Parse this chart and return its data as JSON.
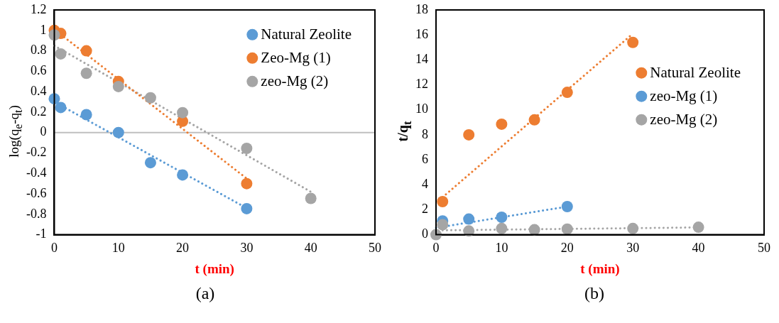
{
  "chart_data": [
    {
      "type": "scatter",
      "xlabel": "t (min)",
      "ylabel": "log(q$_{e}$-q$_{t}$)",
      "xlim": [
        0,
        50
      ],
      "xticks": [
        0,
        10,
        20,
        30,
        40,
        50
      ],
      "ylim": [
        -1,
        1.2
      ],
      "yticks": [
        -1,
        -0.8,
        -0.6,
        -0.4,
        -0.2,
        0,
        0.2,
        0.4,
        0.6,
        0.8,
        1,
        1.2
      ],
      "marker": "circle",
      "legend": "top right",
      "annotations": [
        "(a)"
      ],
      "ref_lines": [
        {
          "axis": "y",
          "value": 0,
          "color": "#bfbfbf"
        }
      ],
      "series": [
        {
          "name": "Natural Zeolite",
          "color": "#5b9bd5",
          "x": [
            0,
            1,
            5,
            10,
            15,
            20,
            30
          ],
          "values": [
            0.33,
            0.245,
            0.175,
            0.0,
            -0.295,
            -0.415,
            -0.745
          ]
        },
        {
          "name": "Zeo-Mg (1)",
          "color": "#ed7d31",
          "x": [
            0,
            1,
            5,
            10,
            20,
            30
          ],
          "values": [
            1.0,
            0.97,
            0.8,
            0.5,
            0.11,
            -0.5
          ]
        },
        {
          "name": "zeo-Mg (2)",
          "color": "#a5a5a5",
          "x": [
            0,
            1,
            5,
            10,
            15,
            20,
            30,
            40
          ],
          "values": [
            0.955,
            0.77,
            0.58,
            0.45,
            0.34,
            0.195,
            -0.155,
            -0.645
          ]
        },
        {
          "type": "line",
          "line_style": "dotted",
          "marker": "none",
          "color": "#5b9bd5",
          "x": [
            0,
            30
          ],
          "values": [
            0.3,
            -0.74
          ]
        },
        {
          "type": "line",
          "line_style": "dotted",
          "marker": "none",
          "color": "#ed7d31",
          "x": [
            1,
            30
          ],
          "values": [
            0.96,
            -0.45
          ]
        },
        {
          "type": "line",
          "line_style": "dotted",
          "marker": "none",
          "color": "#a5a5a5",
          "x": [
            0,
            40
          ],
          "values": [
            0.85,
            -0.58
          ]
        }
      ]
    },
    {
      "type": "scatter",
      "xlabel": "t (min)",
      "ylabel": "t/q$_{t}$",
      "xlim": [
        0,
        50
      ],
      "xticks": [
        0,
        10,
        20,
        30,
        40,
        50
      ],
      "ylim": [
        0,
        18
      ],
      "yticks": [
        0,
        2,
        4,
        6,
        8,
        10,
        12,
        14,
        16,
        18
      ],
      "marker": "circle",
      "legend": "right",
      "annotations": [
        "(b)"
      ],
      "series": [
        {
          "name": "Natural Zeolite",
          "color": "#ed7d31",
          "x": [
            1,
            5,
            10,
            15,
            20,
            30
          ],
          "values": [
            2.65,
            8.0,
            8.85,
            9.2,
            11.4,
            15.4
          ]
        },
        {
          "name": "zeo-Mg (1)",
          "color": "#5b9bd5",
          "x": [
            1,
            5,
            10,
            20
          ],
          "values": [
            1.1,
            1.25,
            1.4,
            2.25
          ]
        },
        {
          "name": "zeo-Mg (2)",
          "color": "#a5a5a5",
          "x": [
            0,
            1,
            5,
            10,
            15,
            20,
            30,
            40
          ],
          "values": [
            0,
            0.8,
            0.3,
            0.5,
            0.4,
            0.45,
            0.5,
            0.6
          ]
        },
        {
          "type": "line",
          "line_style": "dotted",
          "marker": "none",
          "color": "#ed7d31",
          "x": [
            1,
            30
          ],
          "values": [
            3.0,
            16.1
          ]
        },
        {
          "type": "line",
          "line_style": "dotted",
          "marker": "none",
          "color": "#5b9bd5",
          "x": [
            0,
            20
          ],
          "values": [
            0.55,
            2.25
          ]
        },
        {
          "type": "line",
          "line_style": "dotted",
          "marker": "none",
          "color": "#a5a5a5",
          "x": [
            1,
            40
          ],
          "values": [
            0.35,
            0.58
          ]
        }
      ]
    }
  ]
}
